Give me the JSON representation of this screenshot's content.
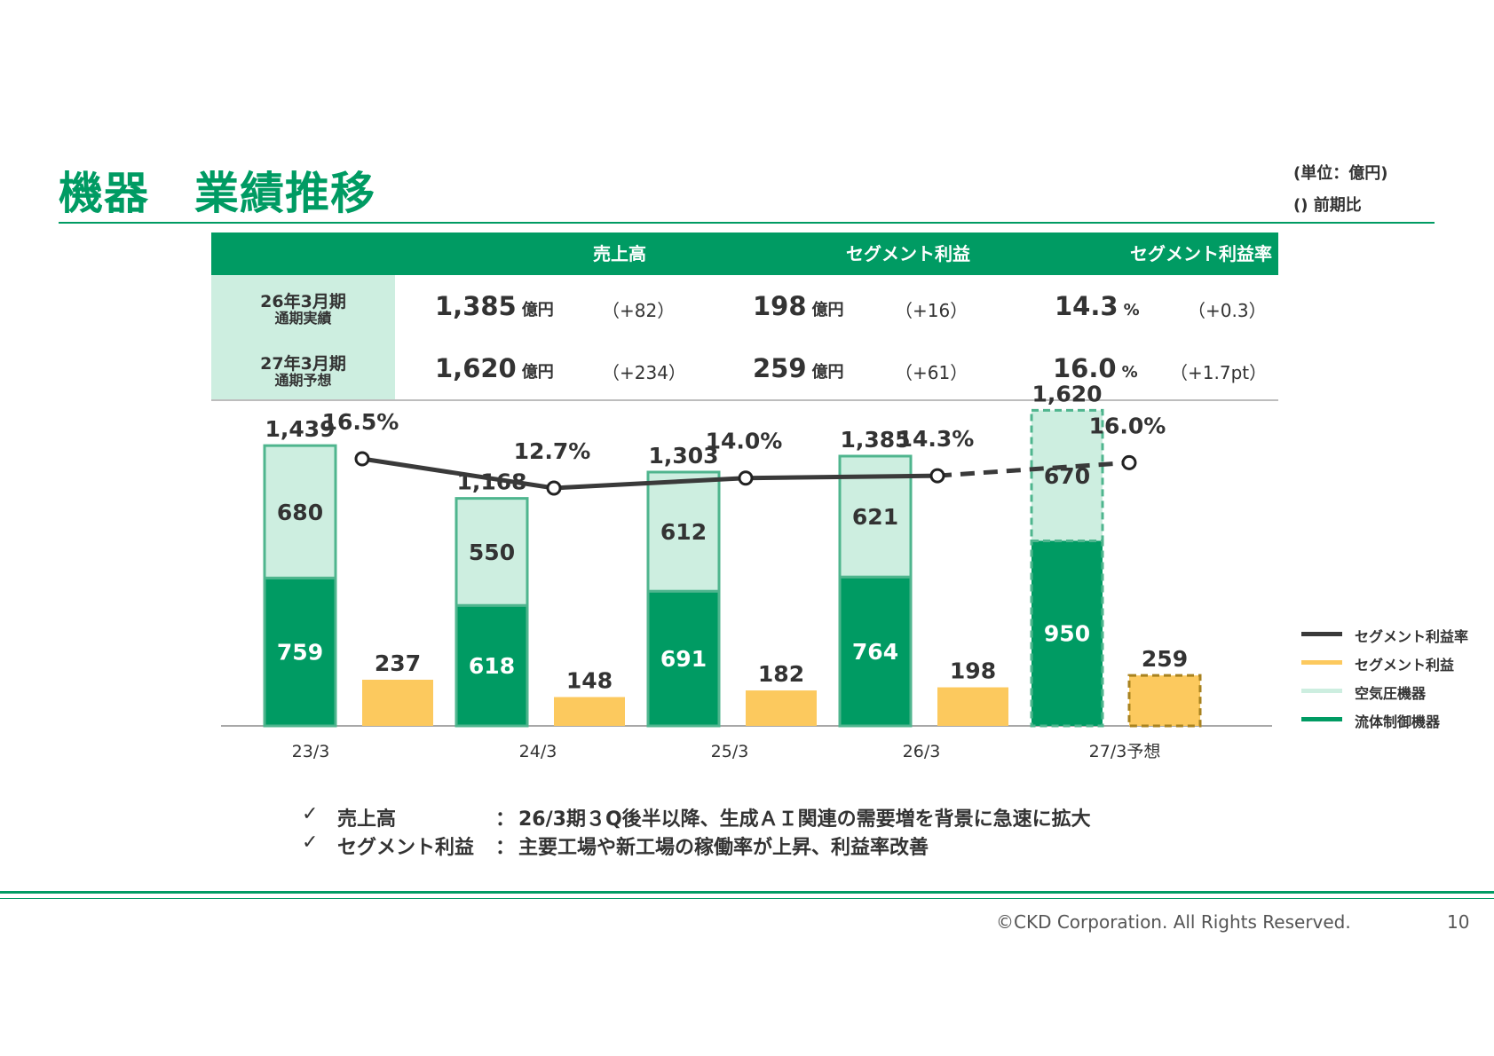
{
  "header": {
    "title": "機器　業績推移",
    "unit_line1": "(単位：億円)",
    "unit_line2": "()  前期比"
  },
  "summary": {
    "columns": [
      "売上高",
      "セグメント利益",
      "セグメント利益率"
    ],
    "rows": [
      {
        "label_line1": "26年3月期",
        "label_line2": "通期実績",
        "cells": [
          {
            "value": "1,385",
            "unit": "億円",
            "diff": "（+82）"
          },
          {
            "value": "198",
            "unit": "億円",
            "diff": "（+16）"
          },
          {
            "value": "14.3",
            "unit": "%",
            "diff": "（+0.3）"
          }
        ]
      },
      {
        "label_line1": "27年3月期",
        "label_line2": "通期予想",
        "cells": [
          {
            "value": "1,620",
            "unit": "億円",
            "diff": "（+234）"
          },
          {
            "value": "259",
            "unit": "億円",
            "diff": "（+61）"
          },
          {
            "value": "16.0",
            "unit": "%",
            "diff": "（+1.7pt）"
          }
        ]
      }
    ]
  },
  "chart_data": {
    "type": "bar",
    "categories": [
      "23/3",
      "24/3",
      "25/3",
      "26/3",
      "27/3予想"
    ],
    "forecast_index": 4,
    "totals": [
      "1,439",
      "1,168",
      "1,303",
      "1,385",
      "1,620"
    ],
    "series": [
      {
        "name": "流体制御機器",
        "kind": "stacked-bar",
        "color": "#009b63",
        "values": [
          759,
          618,
          691,
          764,
          950
        ]
      },
      {
        "name": "空気圧機器",
        "kind": "stacked-bar",
        "color": "#cdeee0",
        "values": [
          680,
          550,
          612,
          621,
          670
        ]
      },
      {
        "name": "セグメント利益",
        "kind": "bar",
        "color": "#fcc95e",
        "values": [
          237,
          148,
          182,
          198,
          259
        ]
      },
      {
        "name": "セグメント利益率",
        "kind": "line",
        "color": "#3a3a3a",
        "values": [
          16.5,
          12.7,
          14.0,
          14.3,
          16.0
        ],
        "labels": [
          "16.5%",
          "12.7%",
          "14.0%",
          "14.3%",
          "16.0%"
        ]
      }
    ],
    "legend": [
      "セグメント利益率",
      "セグメント利益",
      "空気圧機器",
      "流体制御機器"
    ],
    "legend_position": "right",
    "grid": false
  },
  "notes": [
    {
      "check": "✓",
      "label": "売上高",
      "colon": "：",
      "text": "26/3期３Q後半以降、生成ＡＩ関連の需要増を背景に急速に拡大"
    },
    {
      "check": "✓",
      "label": "セグメント利益",
      "colon": "：",
      "text": "主要工場や新工場の稼働率が上昇、利益率改善"
    }
  ],
  "footer": {
    "copyright": "©CKD Corporation. All Rights Reserved.",
    "page": "10"
  }
}
